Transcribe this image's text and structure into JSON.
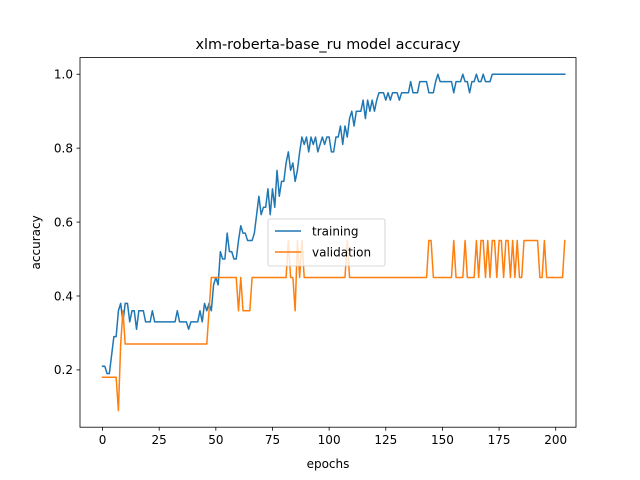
{
  "chart_data": {
    "type": "line",
    "title": "xlm-roberta-base_ru model accuracy",
    "xlabel": "epochs",
    "ylabel": "accuracy",
    "xlim": [
      -9.95,
      208.95
    ],
    "ylim": [
      0.045,
      1.045
    ],
    "xticks": [
      0,
      25,
      50,
      75,
      100,
      125,
      150,
      175,
      200
    ],
    "yticks": [
      0.2,
      0.4,
      0.6,
      0.8,
      1.0
    ],
    "ytick_labels": [
      "0.2",
      "0.4",
      "0.6",
      "0.8",
      "1.0"
    ],
    "legend": "center-right",
    "grid": false,
    "series": [
      {
        "name": "training",
        "color": "#1f77b4",
        "values": [
          0.21,
          0.21,
          0.19,
          0.19,
          0.24,
          0.29,
          0.29,
          0.36,
          0.38,
          0.33,
          0.38,
          0.38,
          0.33,
          0.36,
          0.36,
          0.31,
          0.36,
          0.36,
          0.36,
          0.33,
          0.33,
          0.33,
          0.36,
          0.33,
          0.33,
          0.33,
          0.33,
          0.33,
          0.33,
          0.33,
          0.33,
          0.33,
          0.33,
          0.36,
          0.33,
          0.33,
          0.33,
          0.33,
          0.31,
          0.33,
          0.33,
          0.33,
          0.33,
          0.36,
          0.33,
          0.38,
          0.36,
          0.38,
          0.36,
          0.43,
          0.45,
          0.43,
          0.52,
          0.5,
          0.5,
          0.57,
          0.52,
          0.52,
          0.5,
          0.5,
          0.55,
          0.59,
          0.57,
          0.57,
          0.55,
          0.55,
          0.55,
          0.57,
          0.62,
          0.67,
          0.62,
          0.64,
          0.64,
          0.69,
          0.62,
          0.69,
          0.64,
          0.74,
          0.67,
          0.71,
          0.71,
          0.76,
          0.79,
          0.74,
          0.76,
          0.71,
          0.74,
          0.79,
          0.83,
          0.81,
          0.83,
          0.79,
          0.83,
          0.81,
          0.83,
          0.79,
          0.81,
          0.83,
          0.81,
          0.83,
          0.83,
          0.79,
          0.79,
          0.83,
          0.83,
          0.86,
          0.81,
          0.86,
          0.83,
          0.88,
          0.9,
          0.86,
          0.9,
          0.9,
          0.9,
          0.93,
          0.88,
          0.93,
          0.9,
          0.93,
          0.9,
          0.93,
          0.95,
          0.95,
          0.95,
          0.93,
          0.95,
          0.93,
          0.95,
          0.95,
          0.95,
          0.93,
          0.95,
          0.95,
          0.95,
          0.95,
          0.98,
          0.95,
          0.95,
          0.95,
          0.98,
          0.98,
          0.98,
          0.98,
          0.95,
          0.95,
          0.95,
          0.98,
          1.0,
          0.98,
          0.98,
          0.98,
          0.98,
          0.98,
          0.98,
          0.95,
          0.98,
          0.98,
          0.98,
          1.0,
          0.98,
          0.98,
          0.95,
          0.98,
          0.98,
          1.0,
          0.98,
          0.98,
          1.0,
          0.98,
          0.98,
          0.98,
          1.0,
          1.0,
          1.0,
          1.0,
          1.0,
          1.0,
          1.0,
          1.0,
          1.0,
          1.0,
          1.0,
          1.0,
          1.0,
          1.0,
          1.0,
          1.0,
          1.0,
          1.0,
          1.0,
          1.0,
          1.0,
          1.0,
          1.0,
          1.0,
          1.0,
          1.0,
          1.0,
          1.0,
          1.0,
          1.0,
          1.0,
          1.0,
          1.0
        ]
      },
      {
        "name": "validation",
        "color": "#ff7f0e",
        "values": [
          0.18,
          0.18,
          0.18,
          0.18,
          0.18,
          0.18,
          0.18,
          0.09,
          0.27,
          0.36,
          0.27,
          0.27,
          0.27,
          0.27,
          0.27,
          0.27,
          0.27,
          0.27,
          0.27,
          0.27,
          0.27,
          0.27,
          0.27,
          0.27,
          0.27,
          0.27,
          0.27,
          0.27,
          0.27,
          0.27,
          0.27,
          0.27,
          0.27,
          0.27,
          0.27,
          0.27,
          0.27,
          0.27,
          0.27,
          0.27,
          0.27,
          0.27,
          0.27,
          0.27,
          0.27,
          0.27,
          0.27,
          0.36,
          0.45,
          0.45,
          0.45,
          0.45,
          0.45,
          0.45,
          0.45,
          0.45,
          0.45,
          0.45,
          0.45,
          0.45,
          0.36,
          0.45,
          0.36,
          0.36,
          0.36,
          0.36,
          0.45,
          0.45,
          0.45,
          0.45,
          0.45,
          0.45,
          0.45,
          0.45,
          0.45,
          0.45,
          0.45,
          0.45,
          0.45,
          0.45,
          0.45,
          0.45,
          0.55,
          0.45,
          0.45,
          0.36,
          0.55,
          0.45,
          0.55,
          0.45,
          0.45,
          0.45,
          0.45,
          0.45,
          0.45,
          0.45,
          0.45,
          0.45,
          0.45,
          0.45,
          0.45,
          0.45,
          0.45,
          0.45,
          0.45,
          0.45,
          0.45,
          0.45,
          0.55,
          0.45,
          0.45,
          0.45,
          0.45,
          0.45,
          0.45,
          0.45,
          0.45,
          0.45,
          0.45,
          0.45,
          0.45,
          0.45,
          0.45,
          0.45,
          0.45,
          0.45,
          0.45,
          0.45,
          0.45,
          0.45,
          0.45,
          0.45,
          0.45,
          0.45,
          0.45,
          0.45,
          0.45,
          0.45,
          0.45,
          0.45,
          0.45,
          0.45,
          0.45,
          0.45,
          0.55,
          0.55,
          0.45,
          0.45,
          0.45,
          0.45,
          0.45,
          0.45,
          0.45,
          0.45,
          0.45,
          0.55,
          0.45,
          0.45,
          0.45,
          0.45,
          0.55,
          0.45,
          0.45,
          0.45,
          0.45,
          0.55,
          0.45,
          0.55,
          0.55,
          0.45,
          0.55,
          0.45,
          0.55,
          0.55,
          0.45,
          0.55,
          0.55,
          0.45,
          0.55,
          0.55,
          0.45,
          0.55,
          0.45,
          0.55,
          0.45,
          0.45,
          0.55,
          0.55,
          0.55,
          0.55,
          0.55,
          0.55,
          0.55,
          0.45,
          0.45,
          0.55,
          0.45,
          0.45,
          0.45,
          0.45,
          0.45,
          0.45,
          0.45,
          0.45,
          0.55
        ]
      }
    ]
  }
}
